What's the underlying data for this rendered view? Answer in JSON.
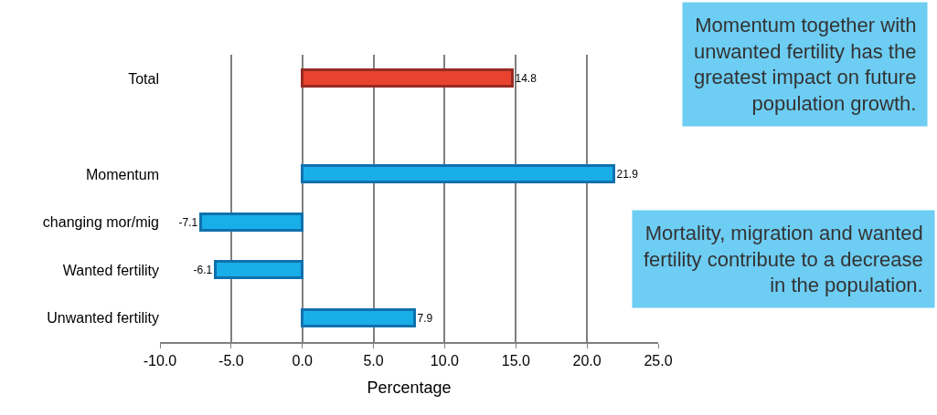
{
  "chart_data": {
    "type": "bar",
    "orientation": "horizontal",
    "xlabel": "Percentage",
    "categories": [
      "Total",
      null,
      "Momentum",
      "changing mor/mig",
      "Wanted fertility",
      "Unwanted fertility"
    ],
    "values": [
      14.8,
      null,
      21.9,
      -7.1,
      -6.1,
      7.9
    ],
    "colors": [
      "#e8432f",
      null,
      "#1aaee8",
      "#1aaee8",
      "#1aaee8",
      "#1aaee8"
    ],
    "data_labels": true,
    "xlim": [
      -10,
      25
    ],
    "xticks": [
      {
        "value": -10,
        "label": "-10.0"
      },
      {
        "value": -5,
        "label": "-5.0"
      },
      {
        "value": 0,
        "label": "0.0"
      },
      {
        "value": 5,
        "label": "5.0"
      },
      {
        "value": 10,
        "label": "10.0"
      },
      {
        "value": 15,
        "label": "15.0"
      },
      {
        "value": 20,
        "label": "20.0"
      },
      {
        "value": 25,
        "label": "25.0"
      }
    ],
    "grid": "x",
    "annotations": [
      "Momentum together with unwanted fertility has the greatest impact on future population growth.",
      "Mortality, migration and wanted fertility contribute to a decrease in the population."
    ]
  }
}
